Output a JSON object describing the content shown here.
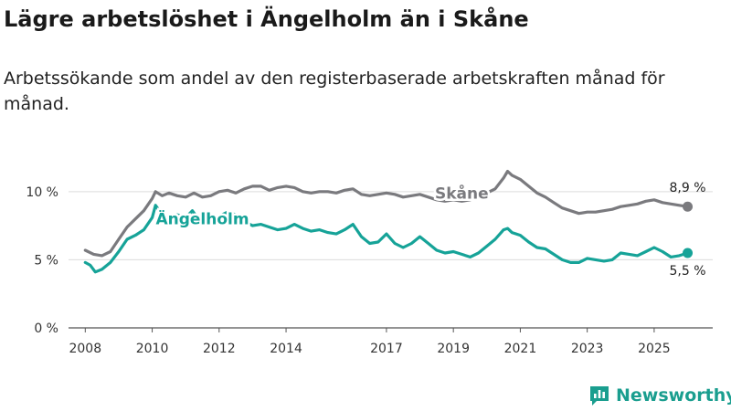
{
  "title": "Lägre arbetslöshet i Ängelholm än i Skåne",
  "subtitle": "Arbetssökande som andel av den registerbaserade arbetskraften månad för månad.",
  "brand": {
    "name": "Newsworthy",
    "icon": "newsworthy-logo-icon",
    "color": "#1a9e8f"
  },
  "colors": {
    "skane": "#7a7a7e",
    "angelholm": "#16a398",
    "grid": "#dcdcdc",
    "axis": "#555555"
  },
  "chart_data": {
    "type": "line",
    "title": "Lägre arbetslöshet i Ängelholm än i Skåne",
    "subtitle": "Arbetssökande som andel av den registerbaserade arbetskraften månad för månad.",
    "xlabel": "",
    "ylabel": "",
    "xlim": [
      2007.5,
      2026.75
    ],
    "ylim": [
      0,
      12
    ],
    "x_ticks": [
      2008,
      2010,
      2012,
      2014,
      2017,
      2019,
      2021,
      2023,
      2025
    ],
    "x_tick_labels": [
      "2008",
      "2010",
      "2012",
      "2014",
      "2017",
      "2019",
      "2021",
      "2023",
      "2025"
    ],
    "y_ticks": [
      0,
      5,
      10
    ],
    "y_tick_labels": [
      "0 %",
      "5 %",
      "10 %"
    ],
    "grid": true,
    "series": [
      {
        "name": "Skåne",
        "color": "#7a7a7e",
        "end_label": "8,9 %",
        "points": [
          [
            2008.0,
            5.7
          ],
          [
            2008.25,
            5.4
          ],
          [
            2008.5,
            5.3
          ],
          [
            2008.75,
            5.6
          ],
          [
            2009.0,
            6.5
          ],
          [
            2009.25,
            7.4
          ],
          [
            2009.5,
            8.0
          ],
          [
            2009.75,
            8.6
          ],
          [
            2010.0,
            9.5
          ],
          [
            2010.1,
            10.0
          ],
          [
            2010.3,
            9.7
          ],
          [
            2010.5,
            9.9
          ],
          [
            2010.75,
            9.7
          ],
          [
            2011.0,
            9.6
          ],
          [
            2011.25,
            9.9
          ],
          [
            2011.5,
            9.6
          ],
          [
            2011.75,
            9.7
          ],
          [
            2012.0,
            10.0
          ],
          [
            2012.25,
            10.1
          ],
          [
            2012.5,
            9.9
          ],
          [
            2012.75,
            10.2
          ],
          [
            2013.0,
            10.4
          ],
          [
            2013.25,
            10.4
          ],
          [
            2013.5,
            10.1
          ],
          [
            2013.75,
            10.3
          ],
          [
            2014.0,
            10.4
          ],
          [
            2014.25,
            10.3
          ],
          [
            2014.5,
            10.0
          ],
          [
            2014.75,
            9.9
          ],
          [
            2015.0,
            10.0
          ],
          [
            2015.25,
            10.0
          ],
          [
            2015.5,
            9.9
          ],
          [
            2015.75,
            10.1
          ],
          [
            2016.0,
            10.2
          ],
          [
            2016.25,
            9.8
          ],
          [
            2016.5,
            9.7
          ],
          [
            2016.75,
            9.8
          ],
          [
            2017.0,
            9.9
          ],
          [
            2017.25,
            9.8
          ],
          [
            2017.5,
            9.6
          ],
          [
            2017.75,
            9.7
          ],
          [
            2018.0,
            9.8
          ],
          [
            2018.25,
            9.6
          ],
          [
            2018.5,
            9.4
          ],
          [
            2018.75,
            9.3
          ],
          [
            2019.0,
            9.4
          ],
          [
            2019.25,
            9.3
          ],
          [
            2019.5,
            9.4
          ],
          [
            2019.75,
            9.7
          ],
          [
            2020.0,
            9.9
          ],
          [
            2020.25,
            10.2
          ],
          [
            2020.5,
            11.0
          ],
          [
            2020.62,
            11.5
          ],
          [
            2020.75,
            11.2
          ],
          [
            2021.0,
            10.9
          ],
          [
            2021.25,
            10.4
          ],
          [
            2021.5,
            9.9
          ],
          [
            2021.75,
            9.6
          ],
          [
            2022.0,
            9.2
          ],
          [
            2022.25,
            8.8
          ],
          [
            2022.5,
            8.6
          ],
          [
            2022.75,
            8.4
          ],
          [
            2023.0,
            8.5
          ],
          [
            2023.25,
            8.5
          ],
          [
            2023.5,
            8.6
          ],
          [
            2023.75,
            8.7
          ],
          [
            2024.0,
            8.9
          ],
          [
            2024.25,
            9.0
          ],
          [
            2024.5,
            9.1
          ],
          [
            2024.75,
            9.3
          ],
          [
            2025.0,
            9.4
          ],
          [
            2025.25,
            9.2
          ],
          [
            2025.5,
            9.1
          ],
          [
            2025.75,
            9.0
          ],
          [
            2026.0,
            8.9
          ]
        ]
      },
      {
        "name": "Ängelholm",
        "color": "#16a398",
        "end_label": "5,5 %",
        "points": [
          [
            2008.0,
            4.8
          ],
          [
            2008.15,
            4.6
          ],
          [
            2008.3,
            4.1
          ],
          [
            2008.5,
            4.3
          ],
          [
            2008.75,
            4.8
          ],
          [
            2009.0,
            5.6
          ],
          [
            2009.25,
            6.5
          ],
          [
            2009.5,
            6.8
          ],
          [
            2009.75,
            7.2
          ],
          [
            2010.0,
            8.1
          ],
          [
            2010.1,
            9.0
          ],
          [
            2010.3,
            8.3
          ],
          [
            2010.5,
            8.0
          ],
          [
            2010.75,
            8.3
          ],
          [
            2011.0,
            8.1
          ],
          [
            2011.2,
            8.6
          ],
          [
            2011.5,
            7.6
          ],
          [
            2011.75,
            7.9
          ],
          [
            2012.0,
            8.2
          ],
          [
            2012.25,
            8.5
          ],
          [
            2012.5,
            8.3
          ],
          [
            2012.75,
            7.8
          ],
          [
            2013.0,
            7.5
          ],
          [
            2013.25,
            7.6
          ],
          [
            2013.5,
            7.4
          ],
          [
            2013.75,
            7.2
          ],
          [
            2014.0,
            7.3
          ],
          [
            2014.25,
            7.6
          ],
          [
            2014.5,
            7.3
          ],
          [
            2014.75,
            7.1
          ],
          [
            2015.0,
            7.2
          ],
          [
            2015.25,
            7.0
          ],
          [
            2015.5,
            6.9
          ],
          [
            2015.75,
            7.2
          ],
          [
            2016.0,
            7.6
          ],
          [
            2016.25,
            6.7
          ],
          [
            2016.5,
            6.2
          ],
          [
            2016.75,
            6.3
          ],
          [
            2017.0,
            6.9
          ],
          [
            2017.25,
            6.2
          ],
          [
            2017.5,
            5.9
          ],
          [
            2017.75,
            6.2
          ],
          [
            2018.0,
            6.7
          ],
          [
            2018.25,
            6.2
          ],
          [
            2018.5,
            5.7
          ],
          [
            2018.75,
            5.5
          ],
          [
            2019.0,
            5.6
          ],
          [
            2019.25,
            5.4
          ],
          [
            2019.5,
            5.2
          ],
          [
            2019.75,
            5.5
          ],
          [
            2020.0,
            6.0
          ],
          [
            2020.25,
            6.5
          ],
          [
            2020.5,
            7.2
          ],
          [
            2020.62,
            7.3
          ],
          [
            2020.75,
            7.0
          ],
          [
            2021.0,
            6.8
          ],
          [
            2021.25,
            6.3
          ],
          [
            2021.5,
            5.9
          ],
          [
            2021.75,
            5.8
          ],
          [
            2022.0,
            5.4
          ],
          [
            2022.25,
            5.0
          ],
          [
            2022.5,
            4.8
          ],
          [
            2022.75,
            4.8
          ],
          [
            2023.0,
            5.1
          ],
          [
            2023.25,
            5.0
          ],
          [
            2023.5,
            4.9
          ],
          [
            2023.75,
            5.0
          ],
          [
            2024.0,
            5.5
          ],
          [
            2024.25,
            5.4
          ],
          [
            2024.5,
            5.3
          ],
          [
            2024.75,
            5.6
          ],
          [
            2025.0,
            5.9
          ],
          [
            2025.25,
            5.6
          ],
          [
            2025.5,
            5.2
          ],
          [
            2025.75,
            5.3
          ],
          [
            2026.0,
            5.5
          ]
        ]
      }
    ],
    "annotations": [
      {
        "text": "Skåne",
        "series": "Skåne",
        "x": 2019.25,
        "y": 9.9
      },
      {
        "text": "Ängelholm",
        "series": "Ängelholm",
        "x": 2011.5,
        "y": 8.0
      }
    ]
  }
}
